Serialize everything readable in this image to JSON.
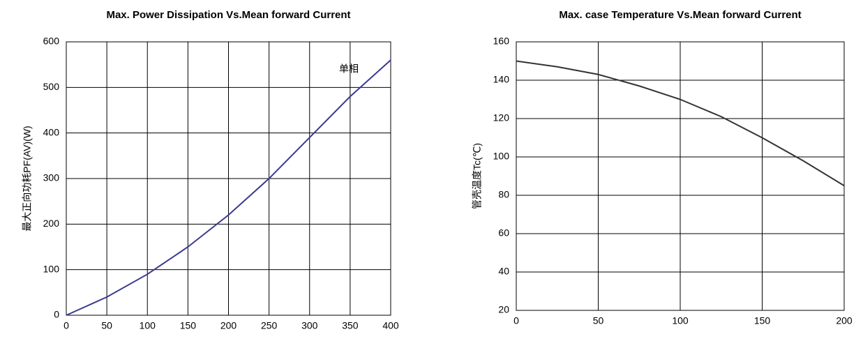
{
  "chart_data": [
    {
      "type": "line",
      "title": "Max. Power Dissipation Vs.Mean forward Current",
      "y_label": "最大正向功耗PF(AV)(W)",
      "annotation": "单相",
      "x": [
        0,
        50,
        100,
        150,
        200,
        250,
        300,
        350,
        400
      ],
      "series": [
        {
          "name": "单相",
          "color": "#3a3a8c",
          "values": [
            0,
            40,
            90,
            150,
            220,
            300,
            390,
            480,
            560
          ]
        }
      ],
      "xlim": [
        0,
        400
      ],
      "xticks": [
        0,
        50,
        100,
        150,
        200,
        250,
        300,
        350,
        400
      ],
      "ylim": [
        0,
        600
      ],
      "yticks": [
        0,
        100,
        200,
        300,
        400,
        500,
        600
      ],
      "grid": true
    },
    {
      "type": "line",
      "title": "Max. case Temperature Vs.Mean forward Current",
      "y_label": "管壳温度Tc(℃)",
      "x": [
        0,
        25,
        50,
        75,
        100,
        125,
        150,
        175,
        200
      ],
      "series": [
        {
          "name": "Tc",
          "color": "#333333",
          "values": [
            150,
            147,
            143,
            137,
            130,
            121,
            110,
            98,
            85
          ]
        }
      ],
      "xlim": [
        0,
        200
      ],
      "xticks": [
        0,
        50,
        100,
        150,
        200
      ],
      "ylim": [
        20,
        160
      ],
      "yticks": [
        20,
        40,
        60,
        80,
        100,
        120,
        140,
        160
      ],
      "grid": true
    }
  ]
}
